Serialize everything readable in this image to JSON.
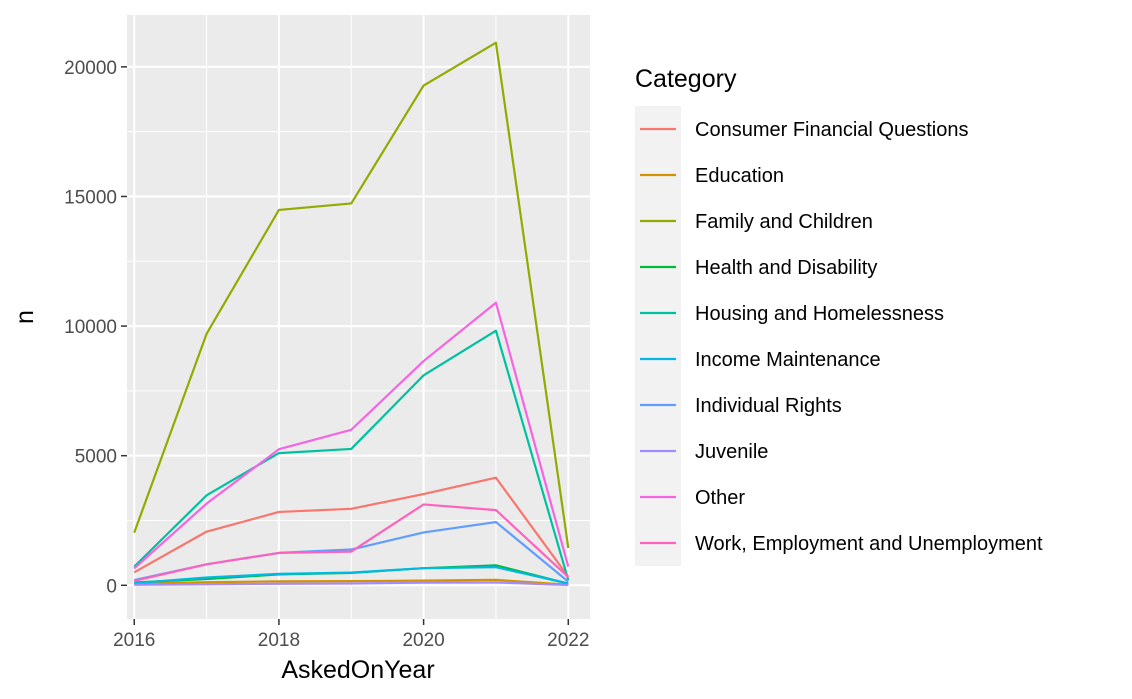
{
  "chart_data": {
    "type": "line",
    "xlabel": "AskedOnYear",
    "ylabel": "n",
    "x": [
      2016,
      2017,
      2018,
      2019,
      2020,
      2021,
      2022
    ],
    "xticks": [
      2016,
      2018,
      2020,
      2022
    ],
    "xlim": [
      2015.9,
      2022.3
    ],
    "yticks": [
      0,
      5000,
      10000,
      15000,
      20000
    ],
    "ylim": [
      -1300,
      22000
    ],
    "grid": true,
    "legend_title": "Category",
    "legend_position": "right",
    "series": [
      {
        "name": "Consumer Financial Questions",
        "color": "#F8766D",
        "values": [
          500,
          2070,
          2830,
          2950,
          3520,
          4150,
          330
        ]
      },
      {
        "name": "Education",
        "color": "#D39200",
        "values": [
          60,
          120,
          150,
          160,
          180,
          210,
          20
        ]
      },
      {
        "name": "Family and Children",
        "color": "#93AA00",
        "values": [
          2030,
          9700,
          14480,
          14730,
          19280,
          20930,
          1440
        ]
      },
      {
        "name": "Health and Disability",
        "color": "#00BA38",
        "values": [
          110,
          240,
          420,
          480,
          660,
          770,
          60
        ]
      },
      {
        "name": "Housing and Homelessness",
        "color": "#00C19F",
        "values": [
          720,
          3470,
          5100,
          5260,
          8100,
          9820,
          200
        ]
      },
      {
        "name": "Income Maintenance",
        "color": "#00B9E3",
        "values": [
          80,
          300,
          440,
          490,
          660,
          700,
          70
        ]
      },
      {
        "name": "Individual Rights",
        "color": "#619CFF",
        "values": [
          200,
          810,
          1250,
          1380,
          2040,
          2440,
          140
        ]
      },
      {
        "name": "Juvenile",
        "color": "#A58AFF",
        "values": [
          20,
          40,
          60,
          70,
          100,
          110,
          10
        ]
      },
      {
        "name": "Other",
        "color": "#F564E3",
        "values": [
          650,
          3150,
          5250,
          6000,
          8650,
          10900,
          720
        ]
      },
      {
        "name": "Work, Employment and Unemployment",
        "color": "#FF62BC",
        "values": [
          170,
          810,
          1250,
          1300,
          3120,
          2900,
          320
        ]
      }
    ]
  }
}
